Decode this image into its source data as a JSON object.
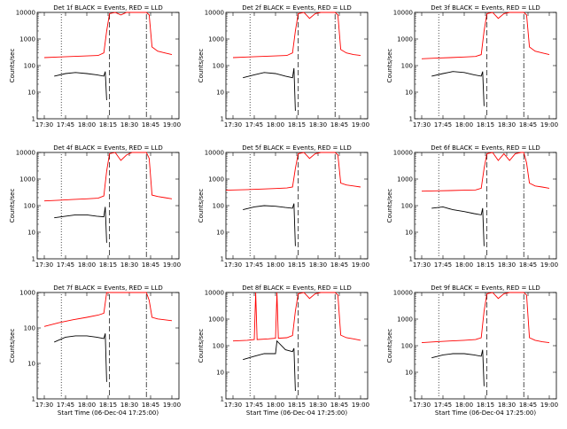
{
  "chart_data": [
    {
      "type": "line",
      "title": "Det 1f BLACK = Events, RED = LLD",
      "xlabel": "",
      "ylabel": "Counts/sec",
      "x_tick_labels": [
        "17:30",
        "17:45",
        "18:00",
        "18:15",
        "18:30",
        "18:45",
        "19:00"
      ],
      "x_range": [
        "17:25",
        "19:05"
      ],
      "ylim": [
        1,
        10000
      ],
      "y_scale": "log",
      "y_tick_labels": [
        "1",
        "10",
        "100",
        "1000",
        "10000"
      ],
      "marker_times": [
        "17:42",
        "18:16",
        "18:42"
      ],
      "series": [
        {
          "name": "LLD",
          "color": "#ff0000",
          "x": [
            "17:30",
            "17:40",
            "17:50",
            "18:00",
            "18:08",
            "18:12",
            "18:14",
            "18:16",
            "18:20",
            "18:24",
            "18:28",
            "18:32",
            "18:36",
            "18:40",
            "18:42",
            "18:44",
            "18:46",
            "18:50",
            "18:55",
            "19:00"
          ],
          "y": [
            200,
            210,
            220,
            230,
            240,
            300,
            2000,
            9000,
            12000,
            8000,
            10000,
            12000,
            12000,
            12000,
            12000,
            8000,
            500,
            350,
            300,
            260
          ]
        },
        {
          "name": "Events",
          "color": "#000000",
          "x": [
            "17:37",
            "17:45",
            "17:52",
            "18:00",
            "18:07",
            "18:12",
            "18:13",
            "18:14"
          ],
          "y": [
            40,
            50,
            55,
            50,
            45,
            40,
            60,
            5
          ]
        }
      ]
    },
    {
      "type": "line",
      "title": "Det 2f BLACK = Events, RED = LLD",
      "xlabel": "",
      "ylabel": "Counts/sec",
      "x_tick_labels": [
        "17:30",
        "17:45",
        "18:00",
        "18:15",
        "18:30",
        "18:45",
        "19:00"
      ],
      "x_range": [
        "17:25",
        "19:05"
      ],
      "ylim": [
        1,
        10000
      ],
      "y_scale": "log",
      "y_tick_labels": [
        "1",
        "10",
        "100",
        "1000",
        "10000"
      ],
      "marker_times": [
        "17:42",
        "18:16",
        "18:42"
      ],
      "series": [
        {
          "name": "LLD",
          "color": "#ff0000",
          "x": [
            "17:30",
            "17:40",
            "17:50",
            "18:00",
            "18:08",
            "18:12",
            "18:14",
            "18:16",
            "18:20",
            "18:24",
            "18:28",
            "18:32",
            "18:36",
            "18:40",
            "18:42",
            "18:44",
            "18:46",
            "18:50",
            "18:55",
            "19:00"
          ],
          "y": [
            200,
            210,
            220,
            230,
            240,
            300,
            2000,
            9000,
            12000,
            6000,
            9000,
            12000,
            12000,
            12000,
            12000,
            8000,
            400,
            300,
            260,
            240
          ]
        },
        {
          "name": "Events",
          "color": "#000000",
          "x": [
            "17:37",
            "17:45",
            "17:52",
            "18:00",
            "18:07",
            "18:12",
            "18:13",
            "18:14"
          ],
          "y": [
            35,
            45,
            55,
            50,
            40,
            35,
            80,
            2
          ]
        }
      ]
    },
    {
      "type": "line",
      "title": "Det 3f BLACK = Events, RED = LLD",
      "xlabel": "",
      "ylabel": "Counts/sec",
      "x_tick_labels": [
        "17:30",
        "17:45",
        "18:00",
        "18:15",
        "18:30",
        "18:45",
        "19:00"
      ],
      "x_range": [
        "17:25",
        "19:05"
      ],
      "ylim": [
        1,
        10000
      ],
      "y_scale": "log",
      "y_tick_labels": [
        "1",
        "10",
        "100",
        "1000",
        "10000"
      ],
      "marker_times": [
        "17:42",
        "18:16",
        "18:42"
      ],
      "series": [
        {
          "name": "LLD",
          "color": "#ff0000",
          "x": [
            "17:30",
            "17:40",
            "17:50",
            "18:00",
            "18:08",
            "18:12",
            "18:14",
            "18:16",
            "18:20",
            "18:24",
            "18:28",
            "18:32",
            "18:36",
            "18:40",
            "18:42",
            "18:44",
            "18:46",
            "18:50",
            "18:55",
            "19:00"
          ],
          "y": [
            180,
            190,
            200,
            210,
            220,
            260,
            2000,
            9000,
            12000,
            6000,
            9000,
            12000,
            12000,
            12000,
            12000,
            8000,
            500,
            350,
            300,
            260
          ]
        },
        {
          "name": "Events",
          "color": "#000000",
          "x": [
            "17:37",
            "17:45",
            "17:52",
            "18:00",
            "18:07",
            "18:12",
            "18:13",
            "18:14"
          ],
          "y": [
            40,
            50,
            60,
            55,
            45,
            40,
            60,
            3
          ]
        }
      ]
    },
    {
      "type": "line",
      "title": "Det 4f BLACK = Events, RED = LLD",
      "xlabel": "",
      "ylabel": "Counts/sec",
      "x_tick_labels": [
        "17:30",
        "17:45",
        "18:00",
        "18:15",
        "18:30",
        "18:45",
        "19:00"
      ],
      "x_range": [
        "17:25",
        "19:05"
      ],
      "ylim": [
        1,
        10000
      ],
      "y_scale": "log",
      "y_tick_labels": [
        "1",
        "10",
        "100",
        "1000",
        "10000"
      ],
      "marker_times": [
        "17:42",
        "18:16",
        "18:42"
      ],
      "series": [
        {
          "name": "LLD",
          "color": "#ff0000",
          "x": [
            "17:30",
            "17:40",
            "17:50",
            "18:00",
            "18:08",
            "18:12",
            "18:14",
            "18:16",
            "18:20",
            "18:24",
            "18:28",
            "18:32",
            "18:36",
            "18:40",
            "18:42",
            "18:44",
            "18:46",
            "18:50",
            "18:55",
            "19:00"
          ],
          "y": [
            150,
            160,
            170,
            180,
            190,
            230,
            2000,
            9000,
            12000,
            5000,
            8000,
            12000,
            12000,
            12000,
            12000,
            6000,
            250,
            220,
            200,
            180
          ]
        },
        {
          "name": "Events",
          "color": "#000000",
          "x": [
            "17:37",
            "17:45",
            "17:52",
            "18:00",
            "18:07",
            "18:12",
            "18:13",
            "18:14"
          ],
          "y": [
            35,
            40,
            45,
            45,
            40,
            38,
            90,
            4
          ]
        }
      ]
    },
    {
      "type": "line",
      "title": "Det 5f BLACK = Events, RED = LLD",
      "xlabel": "",
      "ylabel": "Counts/sec",
      "x_tick_labels": [
        "17:30",
        "17:45",
        "18:00",
        "18:15",
        "18:30",
        "18:45",
        "19:00"
      ],
      "x_range": [
        "17:25",
        "19:05"
      ],
      "ylim": [
        1,
        10000
      ],
      "y_scale": "log",
      "y_tick_labels": [
        "1",
        "10",
        "100",
        "1000",
        "10000"
      ],
      "marker_times": [
        "17:42",
        "18:16",
        "18:42"
      ],
      "series": [
        {
          "name": "LLD",
          "color": "#ff0000",
          "x": [
            "17:25",
            "17:40",
            "17:50",
            "18:00",
            "18:08",
            "18:12",
            "18:14",
            "18:16",
            "18:20",
            "18:24",
            "18:28",
            "18:32",
            "18:36",
            "18:40",
            "18:42",
            "18:44",
            "18:46",
            "18:50",
            "18:55",
            "19:00"
          ],
          "y": [
            380,
            400,
            420,
            440,
            460,
            500,
            2500,
            9000,
            12000,
            6000,
            9000,
            12000,
            12000,
            12000,
            12000,
            8000,
            700,
            600,
            550,
            500
          ]
        },
        {
          "name": "Events",
          "color": "#000000",
          "x": [
            "17:37",
            "17:45",
            "17:52",
            "18:00",
            "18:07",
            "18:12",
            "18:13",
            "18:14"
          ],
          "y": [
            70,
            90,
            100,
            95,
            85,
            80,
            120,
            3
          ]
        }
      ]
    },
    {
      "type": "line",
      "title": "Det 6f BLACK = Events, RED = LLD",
      "xlabel": "",
      "ylabel": "Counts/sec",
      "x_tick_labels": [
        "17:30",
        "17:45",
        "18:00",
        "18:15",
        "18:30",
        "18:45",
        "19:00"
      ],
      "x_range": [
        "17:25",
        "19:05"
      ],
      "ylim": [
        1,
        10000
      ],
      "y_scale": "log",
      "y_tick_labels": [
        "1",
        "10",
        "100",
        "1000",
        "10000"
      ],
      "marker_times": [
        "17:42",
        "18:16",
        "18:42"
      ],
      "series": [
        {
          "name": "LLD",
          "color": "#ff0000",
          "x": [
            "17:30",
            "17:40",
            "17:50",
            "18:00",
            "18:08",
            "18:12",
            "18:14",
            "18:16",
            "18:20",
            "18:24",
            "18:28",
            "18:32",
            "18:36",
            "18:40",
            "18:42",
            "18:44",
            "18:46",
            "18:50",
            "18:55",
            "19:00"
          ],
          "y": [
            350,
            360,
            370,
            380,
            390,
            450,
            2500,
            9000,
            12000,
            5000,
            9000,
            5000,
            9000,
            12000,
            12000,
            4000,
            700,
            550,
            500,
            450
          ]
        },
        {
          "name": "Events",
          "color": "#000000",
          "x": [
            "17:37",
            "17:45",
            "17:52",
            "18:00",
            "18:07",
            "18:12",
            "18:13",
            "18:14"
          ],
          "y": [
            80,
            90,
            70,
            60,
            50,
            45,
            80,
            3
          ]
        }
      ]
    },
    {
      "type": "line",
      "title": "Det 7f BLACK = Events, RED = LLD",
      "xlabel": "Start Time (06-Dec-04 17:25:00)",
      "ylabel": "Counts/sec",
      "x_tick_labels": [
        "17:30",
        "17:45",
        "18:00",
        "18:15",
        "18:30",
        "18:45",
        "19:00"
      ],
      "x_range": [
        "17:25",
        "19:05"
      ],
      "ylim": [
        1,
        1000
      ],
      "y_scale": "log",
      "y_tick_labels": [
        "1",
        "10",
        "100",
        "1000"
      ],
      "marker_times": [
        "17:42",
        "18:16",
        "18:42"
      ],
      "series": [
        {
          "name": "LLD",
          "color": "#ff0000",
          "x": [
            "17:30",
            "17:40",
            "17:50",
            "18:00",
            "18:08",
            "18:12",
            "18:14",
            "18:16",
            "18:42",
            "18:44",
            "18:46",
            "18:50",
            "18:55",
            "19:00"
          ],
          "y": [
            110,
            140,
            170,
            200,
            230,
            260,
            1000,
            2000,
            2000,
            600,
            200,
            180,
            170,
            160
          ]
        },
        {
          "name": "Events",
          "color": "#000000",
          "x": [
            "17:37",
            "17:45",
            "17:52",
            "18:00",
            "18:07",
            "18:12",
            "18:13",
            "18:14"
          ],
          "y": [
            40,
            55,
            60,
            60,
            55,
            50,
            70,
            3
          ]
        }
      ]
    },
    {
      "type": "line",
      "title": "Det 8f BLACK = Events, RED = LLD",
      "xlabel": "Start Time (06-Dec-04 17:25:00)",
      "ylabel": "Counts/sec",
      "x_tick_labels": [
        "17:30",
        "17:45",
        "18:00",
        "18:15",
        "18:30",
        "18:45",
        "19:00"
      ],
      "x_range": [
        "17:25",
        "19:05"
      ],
      "ylim": [
        1,
        10000
      ],
      "y_scale": "log",
      "y_tick_labels": [
        "1",
        "10",
        "100",
        "1000",
        "10000"
      ],
      "marker_times": [
        "17:42",
        "18:16",
        "18:42"
      ],
      "series": [
        {
          "name": "LLD",
          "color": "#ff0000",
          "x": [
            "17:30",
            "17:40",
            "17:45",
            "17:46",
            "17:47",
            "17:55",
            "18:00",
            "18:01",
            "18:02",
            "18:08",
            "18:12",
            "18:14",
            "18:16",
            "18:20",
            "18:24",
            "18:28",
            "18:32",
            "18:36",
            "18:40",
            "18:42",
            "18:44",
            "18:46",
            "18:50",
            "18:55",
            "19:00"
          ],
          "y": [
            150,
            160,
            170,
            12000,
            170,
            180,
            190,
            12000,
            190,
            200,
            240,
            2000,
            9000,
            12000,
            6000,
            9000,
            12000,
            12000,
            12000,
            12000,
            8000,
            250,
            200,
            180,
            160
          ]
        },
        {
          "name": "Events",
          "color": "#000000",
          "x": [
            "17:37",
            "17:45",
            "17:52",
            "18:00",
            "18:01",
            "18:07",
            "18:12",
            "18:13",
            "18:14"
          ],
          "y": [
            30,
            40,
            50,
            50,
            150,
            70,
            60,
            80,
            2
          ]
        }
      ]
    },
    {
      "type": "line",
      "title": "Det 9f BLACK = Events, RED = LLD",
      "xlabel": "Start Time (06-Dec-04 17:25:00)",
      "ylabel": "Counts/sec",
      "x_tick_labels": [
        "17:30",
        "17:45",
        "18:00",
        "18:15",
        "18:30",
        "18:45",
        "19:00"
      ],
      "x_range": [
        "17:25",
        "19:05"
      ],
      "ylim": [
        1,
        10000
      ],
      "y_scale": "log",
      "y_tick_labels": [
        "1",
        "10",
        "100",
        "1000",
        "10000"
      ],
      "marker_times": [
        "17:42",
        "18:16",
        "18:42"
      ],
      "series": [
        {
          "name": "LLD",
          "color": "#ff0000",
          "x": [
            "17:30",
            "17:40",
            "17:50",
            "18:00",
            "18:08",
            "18:12",
            "18:14",
            "18:16",
            "18:20",
            "18:24",
            "18:28",
            "18:32",
            "18:36",
            "18:40",
            "18:42",
            "18:44",
            "18:46",
            "18:50",
            "18:55",
            "19:00"
          ],
          "y": [
            130,
            140,
            150,
            160,
            170,
            200,
            2000,
            9000,
            12000,
            6000,
            9000,
            12000,
            12000,
            12000,
            12000,
            8000,
            200,
            160,
            140,
            130
          ]
        },
        {
          "name": "Events",
          "color": "#000000",
          "x": [
            "17:37",
            "17:45",
            "17:52",
            "18:00",
            "18:07",
            "18:12",
            "18:13",
            "18:14"
          ],
          "y": [
            35,
            45,
            50,
            50,
            45,
            40,
            70,
            3
          ]
        }
      ]
    }
  ]
}
